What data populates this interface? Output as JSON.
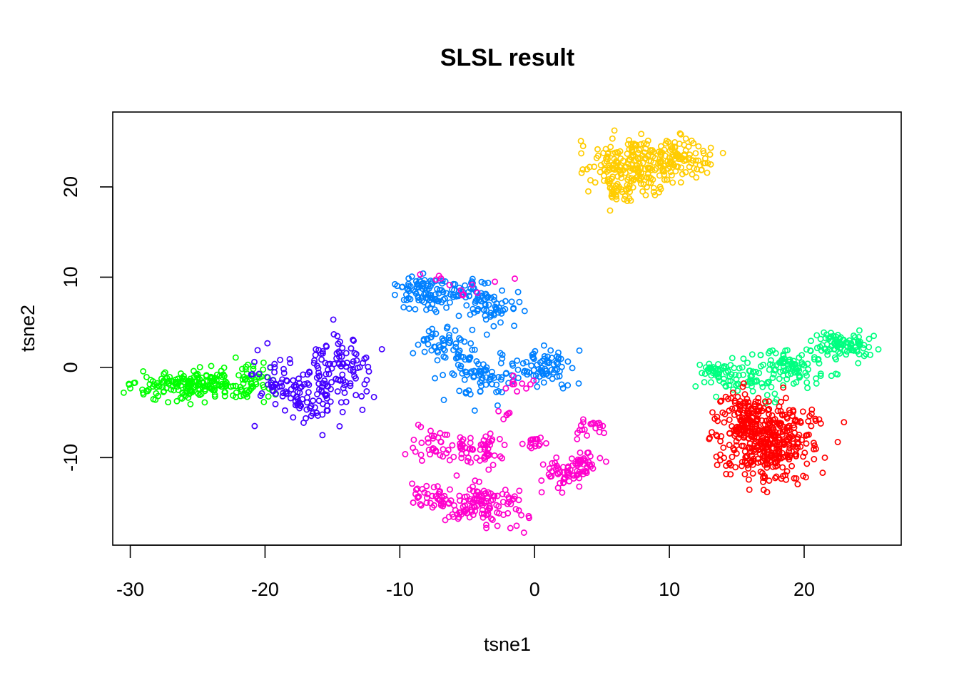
{
  "chart_data": {
    "type": "scatter",
    "title": "SLSL result",
    "xlabel": "tsne1",
    "ylabel": "tsne2",
    "xlim": [
      -31.3,
      27.2
    ],
    "ylim": [
      -19.7,
      28.3
    ],
    "xticks": [
      -30,
      -20,
      -10,
      0,
      10,
      20
    ],
    "yticks": [
      -10,
      0,
      10,
      20
    ],
    "marker": "open-circle",
    "grid": false,
    "legend": "none",
    "clusters": [
      {
        "color": "#00FF00",
        "count": 230,
        "blobs": [
          {
            "cx": -26,
            "cy": -2.2,
            "sx": 1.9,
            "sy": 0.9,
            "w": 0.6
          },
          {
            "cx": -23,
            "cy": -1.9,
            "sx": 1.5,
            "sy": 0.7,
            "w": 0.25
          },
          {
            "cx": -20.8,
            "cy": -1.6,
            "sx": 0.8,
            "sy": 1.2,
            "w": 0.15
          }
        ]
      },
      {
        "color": "#4400FF",
        "count": 210,
        "blobs": [
          {
            "cx": -19,
            "cy": -2,
            "sx": 0.9,
            "sy": 1.5,
            "w": 0.25
          },
          {
            "cx": -17,
            "cy": -3.6,
            "sx": 0.8,
            "sy": 1.4,
            "w": 0.2
          },
          {
            "cx": -14.5,
            "cy": 1,
            "sx": 1.2,
            "sy": 1.3,
            "w": 0.3
          },
          {
            "cx": -14.8,
            "cy": -3,
            "sx": 1.4,
            "sy": 1.8,
            "w": 0.25
          }
        ]
      },
      {
        "color": "#0080FF",
        "count": 390,
        "blobs": [
          {
            "cx": -8,
            "cy": 8.3,
            "sx": 1.4,
            "sy": 1.1,
            "w": 0.25
          },
          {
            "cx": -4.5,
            "cy": 8.2,
            "sx": 1.1,
            "sy": 0.9,
            "w": 0.12
          },
          {
            "cx": -3,
            "cy": 6.3,
            "sx": 0.8,
            "sy": 0.7,
            "w": 0.1
          },
          {
            "cx": -7,
            "cy": 2.8,
            "sx": 1.1,
            "sy": 0.9,
            "w": 0.13
          },
          {
            "cx": -4.2,
            "cy": -1,
            "sx": 1.1,
            "sy": 1.3,
            "w": 0.2
          },
          {
            "cx": 0.6,
            "cy": 0,
            "sx": 1.1,
            "sy": 1.1,
            "w": 0.2
          }
        ]
      },
      {
        "color": "#FF00CC",
        "count": 400,
        "blobs": [
          {
            "cx": -7.5,
            "cy": -8.5,
            "sx": 0.8,
            "sy": 1.2,
            "w": 0.08
          },
          {
            "cx": -4,
            "cy": -9,
            "sx": 0.9,
            "sy": 0.8,
            "w": 0.15
          },
          {
            "cx": -7.5,
            "cy": -14.2,
            "sx": 0.9,
            "sy": 0.9,
            "w": 0.1
          },
          {
            "cx": -3.8,
            "cy": -15,
            "sx": 1.4,
            "sy": 1.3,
            "w": 0.3
          },
          {
            "cx": 0,
            "cy": -8.3,
            "sx": 0.5,
            "sy": 0.4,
            "w": 0.04
          },
          {
            "cx": 2.3,
            "cy": -11.8,
            "sx": 0.9,
            "sy": 0.8,
            "w": 0.12
          },
          {
            "cx": 3.6,
            "cy": -10.5,
            "sx": 0.6,
            "sy": 0.8,
            "w": 0.08
          },
          {
            "cx": 3.9,
            "cy": -6.5,
            "sx": 0.6,
            "sy": 0.6,
            "w": 0.05
          },
          {
            "cx": -5.5,
            "cy": 9,
            "sx": 2,
            "sy": 0.8,
            "w": 0.03
          },
          {
            "cx": -1,
            "cy": -1.8,
            "sx": 0.6,
            "sy": 0.4,
            "w": 0.025
          },
          {
            "cx": -2.5,
            "cy": -5.2,
            "sx": 0.4,
            "sy": 0.3,
            "w": 0.015
          }
        ]
      },
      {
        "color": "#FFCC00",
        "count": 330,
        "blobs": [
          {
            "cx": 7,
            "cy": 22.5,
            "sx": 1.5,
            "sy": 1.6,
            "w": 0.55
          },
          {
            "cx": 10.5,
            "cy": 23,
            "sx": 1.4,
            "sy": 1.4,
            "w": 0.35
          },
          {
            "cx": 6.2,
            "cy": 19.5,
            "sx": 0.6,
            "sy": 0.8,
            "w": 0.1
          }
        ]
      },
      {
        "color": "#00FF80",
        "count": 280,
        "blobs": [
          {
            "cx": 22.8,
            "cy": 2.5,
            "sx": 1.2,
            "sy": 0.8,
            "w": 0.35
          },
          {
            "cx": 19,
            "cy": 0.2,
            "sx": 1.5,
            "sy": 1.1,
            "w": 0.35
          },
          {
            "cx": 15.5,
            "cy": -1.5,
            "sx": 1.2,
            "sy": 1,
            "w": 0.2
          },
          {
            "cx": 13.3,
            "cy": -0.3,
            "sx": 0.5,
            "sy": 0.3,
            "w": 0.1
          }
        ]
      },
      {
        "color": "#FF0000",
        "count": 470,
        "blobs": [
          {
            "cx": 17.3,
            "cy": -8.2,
            "sx": 1.7,
            "sy": 2.1,
            "w": 0.85
          },
          {
            "cx": 15.5,
            "cy": -5,
            "sx": 0.9,
            "sy": 1.1,
            "w": 0.15
          }
        ]
      }
    ]
  }
}
